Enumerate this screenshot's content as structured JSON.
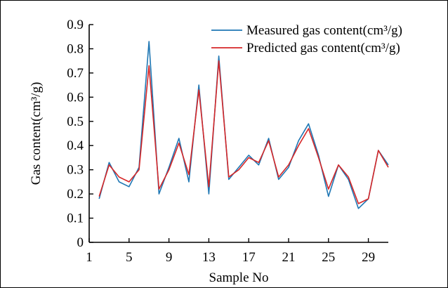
{
  "chart_data": {
    "type": "line",
    "title": "",
    "xlabel": "Sample No",
    "ylabel": "Gas content(cm³/g)",
    "xlim": [
      1,
      31
    ],
    "ylim": [
      0,
      0.9
    ],
    "x_ticks": [
      1,
      5,
      9,
      13,
      17,
      21,
      25,
      29
    ],
    "y_ticks": [
      0,
      0.1,
      0.2,
      0.3,
      0.4,
      0.5,
      0.6,
      0.7,
      0.8,
      0.9
    ],
    "x_tick_labels": [
      "1",
      "5",
      "9",
      "13",
      "17",
      "21",
      "25",
      "29"
    ],
    "y_tick_labels": [
      "0",
      "0.1",
      "0.2",
      "0.3",
      "0.4",
      "0.5",
      "0.6",
      "0.7",
      "0.8",
      "0.9"
    ],
    "grid": false,
    "legend_position": "top-right",
    "x": [
      2,
      3,
      4,
      5,
      6,
      7,
      8,
      9,
      10,
      11,
      12,
      13,
      14,
      15,
      16,
      17,
      18,
      19,
      20,
      21,
      22,
      23,
      24,
      25,
      26,
      27,
      28,
      29,
      30,
      31
    ],
    "series": [
      {
        "name": "Measured gas content(cm³/g)",
        "color": "#1f77b4",
        "values": [
          0.18,
          0.33,
          0.25,
          0.23,
          0.31,
          0.83,
          0.2,
          0.31,
          0.43,
          0.25,
          0.65,
          0.2,
          0.77,
          0.26,
          0.31,
          0.36,
          0.32,
          0.43,
          0.26,
          0.31,
          0.42,
          0.49,
          0.36,
          0.19,
          0.32,
          0.26,
          0.14,
          0.18,
          0.38,
          0.32
        ]
      },
      {
        "name": "Predicted gas content(cm³/g)",
        "color": "#d62728",
        "values": [
          0.19,
          0.32,
          0.27,
          0.25,
          0.3,
          0.73,
          0.22,
          0.3,
          0.41,
          0.28,
          0.63,
          0.23,
          0.75,
          0.27,
          0.3,
          0.35,
          0.33,
          0.42,
          0.27,
          0.32,
          0.4,
          0.47,
          0.35,
          0.22,
          0.32,
          0.27,
          0.16,
          0.18,
          0.38,
          0.31
        ]
      }
    ]
  }
}
